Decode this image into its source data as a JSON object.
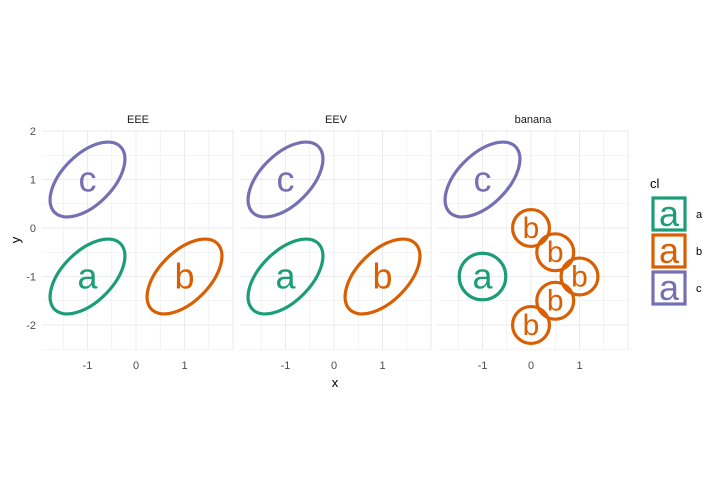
{
  "chart_data": {
    "type": "ellipse-faceted",
    "xlabel": "x",
    "ylabel": "y",
    "xlim": [
      -2,
      2
    ],
    "ylim": [
      -2.5,
      2.1
    ],
    "xticks": [
      -1,
      0,
      1
    ],
    "yticks": [
      -2,
      -1,
      0,
      1,
      2
    ],
    "grid": true,
    "legend": {
      "title": "cl",
      "position": "right",
      "entries": [
        {
          "key": "a",
          "label": "a",
          "color": "#1b9e77"
        },
        {
          "key": "b",
          "label": "b",
          "color": "#d95f02"
        },
        {
          "key": "c",
          "label": "c",
          "color": "#7570b3"
        }
      ]
    },
    "panels": [
      {
        "title": "EEE",
        "ellipses": [
          {
            "label": "c",
            "cx": -1.0,
            "cy": 1.0,
            "rx": 0.96,
            "ry": 0.52,
            "angle": 45
          },
          {
            "label": "a",
            "cx": -1.0,
            "cy": -1.0,
            "rx": 0.96,
            "ry": 0.52,
            "angle": 45
          },
          {
            "label": "b",
            "cx": 1.0,
            "cy": -1.0,
            "rx": 0.96,
            "ry": 0.52,
            "angle": 45
          }
        ]
      },
      {
        "title": "EEV",
        "ellipses": [
          {
            "label": "c",
            "cx": -1.0,
            "cy": 1.0,
            "rx": 0.96,
            "ry": 0.52,
            "angle": 45
          },
          {
            "label": "a",
            "cx": -1.0,
            "cy": -1.0,
            "rx": 0.96,
            "ry": 0.52,
            "angle": 45
          },
          {
            "label": "b",
            "cx": 1.0,
            "cy": -1.0,
            "rx": 0.96,
            "ry": 0.52,
            "angle": 45
          }
        ]
      },
      {
        "title": "banana",
        "ellipses": [
          {
            "label": "c",
            "cx": -1.0,
            "cy": 1.0,
            "rx": 0.96,
            "ry": 0.52,
            "angle": 45
          },
          {
            "label": "a",
            "cx": -1.0,
            "cy": -1.0,
            "rx": 0.48,
            "ry": 0.48,
            "angle": 0
          },
          {
            "label": "b",
            "cx": 0.0,
            "cy": 0.0,
            "rx": 0.38,
            "ry": 0.38,
            "angle": 0
          },
          {
            "label": "b",
            "cx": 0.5,
            "cy": -0.5,
            "rx": 0.38,
            "ry": 0.38,
            "angle": 0
          },
          {
            "label": "b",
            "cx": 1.0,
            "cy": -1.0,
            "rx": 0.38,
            "ry": 0.38,
            "angle": 0
          },
          {
            "label": "b",
            "cx": 0.5,
            "cy": -1.5,
            "rx": 0.38,
            "ry": 0.38,
            "angle": 0
          },
          {
            "label": "b",
            "cx": 0.0,
            "cy": -2.0,
            "rx": 0.38,
            "ry": 0.38,
            "angle": 0
          }
        ]
      }
    ]
  }
}
